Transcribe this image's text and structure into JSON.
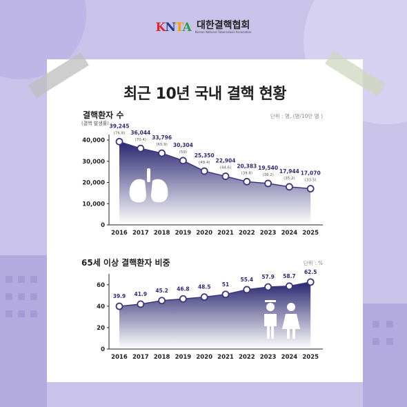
{
  "logo": {
    "mark": "KNTA",
    "name": "대한결핵협회",
    "name_en": "Korean National Tuberculosis Association"
  },
  "title": "최근 10년 국내 결핵 현황",
  "colors": {
    "background": "#c9c3ea",
    "navy": "#2a2670",
    "line": "#3b347f"
  },
  "chart_data": [
    {
      "type": "area",
      "title": "결핵환자 수",
      "subtitle": "(결핵 발생률)",
      "unit": "단위 : 명, (명/10만 명 )",
      "x": [
        2016,
        2017,
        2018,
        2019,
        2020,
        2021,
        2022,
        2023,
        2024,
        2025
      ],
      "values": [
        39245,
        36044,
        33796,
        30304,
        25350,
        22904,
        20383,
        19540,
        17944,
        17070
      ],
      "value_labels": [
        "39,245",
        "36,044",
        "33,796",
        "30,304",
        "25,350",
        "22,904",
        "20,383",
        "19,540",
        "17,944",
        "17,070"
      ],
      "rate_labels": [
        "(76.8)",
        "(70.4)",
        "(65.9)",
        "(59)",
        "(49.4)",
        "(44.6)",
        "(39.8)",
        "(38.2)",
        "(35.2)",
        "(33.5)"
      ],
      "ylim": [
        0,
        40000
      ],
      "yticks": [
        0,
        10000,
        20000,
        30000,
        40000
      ],
      "ytick_labels": [
        "0",
        "10,000",
        "20,000",
        "30,000",
        "40,000"
      ],
      "icon": "lungs-icon"
    },
    {
      "type": "area",
      "title": "65세 이상 결핵환자 비중",
      "unit": "단위 : %",
      "x": [
        2016,
        2017,
        2018,
        2019,
        2020,
        2021,
        2022,
        2023,
        2024,
        2025
      ],
      "values": [
        39.9,
        41.9,
        45.2,
        46.8,
        48.5,
        51,
        55.4,
        57.9,
        58.7,
        62.5
      ],
      "value_labels": [
        "39.9",
        "41.9",
        "45.2",
        "46.8",
        "48.5",
        "51",
        "55.4",
        "57.9",
        "58.7",
        "62.5"
      ],
      "ylim": [
        0,
        65
      ],
      "yticks": [
        0,
        20,
        40,
        60
      ],
      "ytick_labels": [
        "0",
        "20",
        "40",
        "60"
      ],
      "icon": "elderly-couple-icon"
    }
  ]
}
